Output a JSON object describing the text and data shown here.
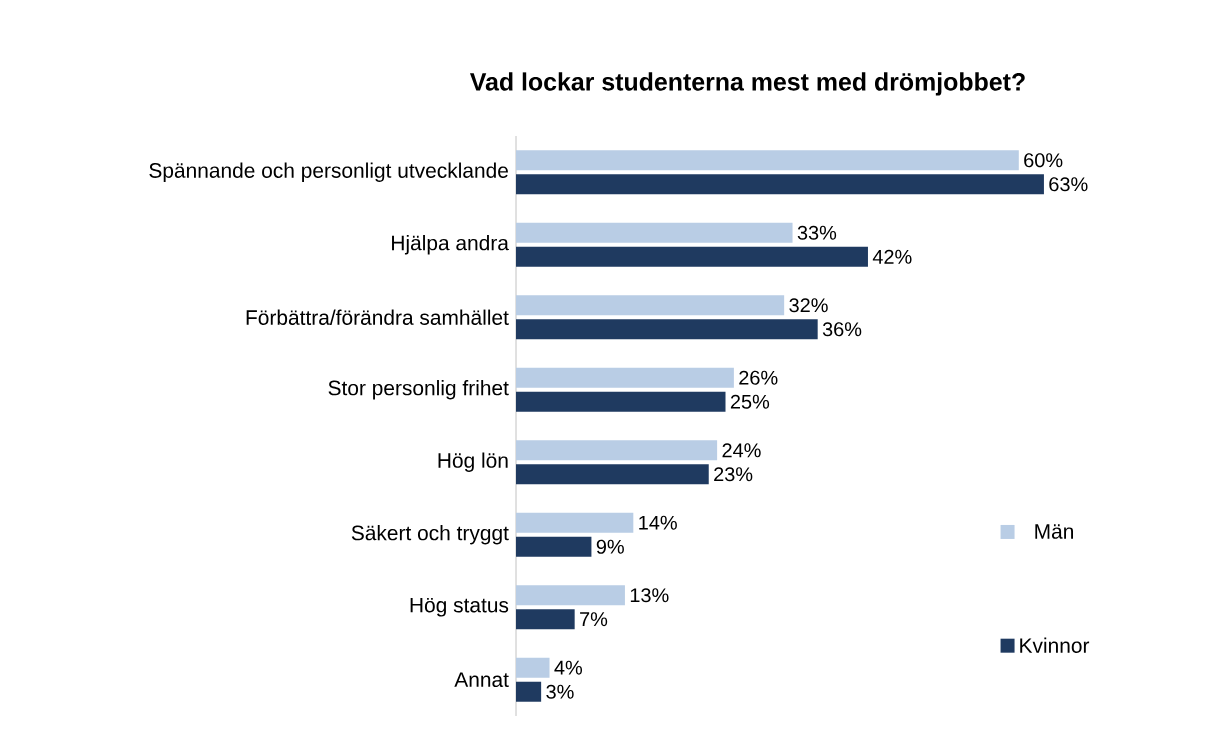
{
  "chart_data": {
    "type": "bar",
    "orientation": "horizontal",
    "title": "Vad lockar studenterna mest med drömjobbet?",
    "categories": [
      "Spännande och personligt utvecklande",
      "Hjälpa andra",
      "Förbättra/förändra samhället",
      "Stor personlig frihet",
      "Hög lön",
      "Säkert och tryggt",
      "Hög status",
      "Annat"
    ],
    "series": [
      {
        "name": "Män",
        "color": "#b9cde5",
        "values": [
          60,
          33,
          32,
          26,
          24,
          14,
          13,
          4
        ],
        "value_labels": [
          "60%",
          "33%",
          "32%",
          "26%",
          "24%",
          "14%",
          "13%",
          "4%"
        ]
      },
      {
        "name": "Kvinnor",
        "color": "#1f3a60",
        "values": [
          63,
          42,
          36,
          25,
          23,
          9,
          7,
          3
        ],
        "value_labels": [
          "63%",
          "42%",
          "36%",
          "25%",
          "23%",
          "9%",
          "7%",
          "3%"
        ]
      }
    ],
    "legend": "right",
    "tick_labels": "y"
  }
}
